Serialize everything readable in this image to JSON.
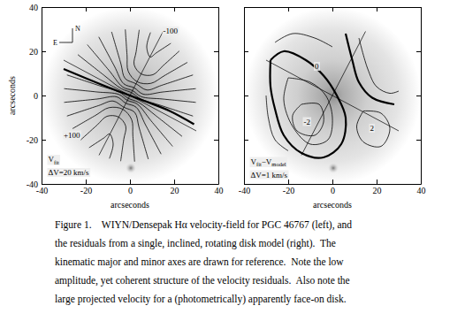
{
  "chart_data": [
    {
      "type": "contour",
      "xlabel": "arcseconds",
      "ylabel": "arcseconds",
      "xlim": [
        -40,
        40
      ],
      "ylim": [
        -40,
        40
      ],
      "xticks": [
        -40,
        -20,
        0,
        20,
        40
      ],
      "yticks": [
        -40,
        -20,
        0,
        20,
        40
      ],
      "tick_labels": true,
      "compass": {
        "north": "N",
        "east": "E"
      },
      "annotations": [
        {
          "text": "-100",
          "x": 15,
          "y": 28
        },
        {
          "text": "+100",
          "x": -30,
          "y": -19
        },
        {
          "segments": [
            {
              "text": "V"
            },
            {
              "text": "fit",
              "sub": true
            }
          ],
          "x": -37,
          "y": -30
        },
        {
          "text": "ΔV=20 km/s",
          "x": -37,
          "y": -36
        }
      ],
      "reference_lines": [
        {
          "x": [
            -14,
            15
          ],
          "values": [
            -27,
            29
          ]
        },
        {
          "x": [
            -30,
            30
          ],
          "values": [
            16,
            -16
          ]
        }
      ],
      "series": [
        {
          "x": [
            -30,
            -18,
            -8,
            0,
            8,
            18,
            29
          ],
          "values": [
            12,
            7,
            3,
            0,
            -3,
            -7,
            -13
          ],
          "line_style": "thick"
        },
        {
          "x": [
            -23.6,
            -11.8,
            -3.9,
            0.7,
            4.8,
            14.3,
            28.5
          ],
          "values": [
            18.5,
            9.2,
            3.1,
            1.3,
            -1.5,
            -4.6,
            -9.3
          ],
          "line_style": "solid"
        },
        {
          "x": [
            -19.3,
            -9.6,
            -3.2,
            1.2,
            5.0,
            14.9,
            29.8
          ],
          "values": [
            23.0,
            11.5,
            3.8,
            2.2,
            -0.5,
            -1.6,
            -3.1
          ],
          "line_style": "solid"
        },
        {
          "x": [
            -14.1,
            -7.0,
            -2.8,
            1.9,
            6.0,
            14.9,
            29.8
          ],
          "values": [
            26.5,
            13.2,
            5.3,
            3.5,
            0.6,
            1.6,
            3.1
          ],
          "line_style": "solid"
        },
        {
          "x": [
            -8.3,
            -4.1,
            -2.2,
            2.8,
            7.6,
            14.3,
            28.5
          ],
          "values": [
            28.8,
            14.4,
            7.7,
            5.3,
            2.5,
            4.6,
            9.3
          ],
          "line_style": "solid"
        },
        {
          "x": [
            -2.1,
            -1.3,
            -0.8,
            3.3,
            9.5,
            15.6,
            26.0
          ],
          "values": [
            29.9,
            18.0,
            11.0,
            6.2,
            5.5,
            9.0,
            15.0
          ],
          "line_style": "solid"
        },
        {
          "x": [
            4.2,
            2.8,
            1.9,
            5.2,
            10.4,
            14.9,
            22.3
          ],
          "values": [
            29.7,
            19.8,
            13.9,
            9.7,
            9.4,
            13.4,
            20.1
          ],
          "line_style": "solid"
        },
        {
          "x": [
            9.3,
            7.6,
            9.2,
            11.8,
            18.5
          ],
          "values": [
            28.5,
            22.0,
            17.4,
            19.2,
            23.6
          ],
          "line_style": "solid"
        },
        {
          "x": [
            23.6,
            11.8,
            3.9,
            -0.7,
            -4.8,
            -14.3,
            -28.5
          ],
          "values": [
            -18.5,
            -9.2,
            -3.1,
            -1.3,
            1.5,
            4.6,
            9.3
          ],
          "line_style": "solid"
        },
        {
          "x": [
            19.3,
            9.6,
            3.2,
            -1.2,
            -5.0,
            -14.9,
            -29.8
          ],
          "values": [
            -23.0,
            -11.5,
            -3.8,
            -2.2,
            0.5,
            1.6,
            3.1
          ],
          "line_style": "solid"
        },
        {
          "x": [
            14.1,
            7.0,
            2.8,
            -1.9,
            -6.0,
            -14.9,
            -29.8
          ],
          "values": [
            -26.5,
            -13.2,
            -5.3,
            -3.5,
            -0.6,
            -1.6,
            -3.1
          ],
          "line_style": "solid"
        },
        {
          "x": [
            8.3,
            4.1,
            2.2,
            -2.8,
            -7.6,
            -14.3,
            -28.5
          ],
          "values": [
            -28.8,
            -14.4,
            -7.7,
            -5.3,
            -2.5,
            -4.6,
            -9.3
          ],
          "line_style": "solid"
        },
        {
          "x": [
            2.1,
            1.3,
            0.8,
            -3.3,
            -9.5,
            -15.6,
            -26.0
          ],
          "values": [
            -29.9,
            -18.0,
            -11.0,
            -6.2,
            -5.5,
            -9.0,
            -15.0
          ],
          "line_style": "solid"
        },
        {
          "x": [
            -4.2,
            -2.8,
            -1.9,
            -5.2,
            -10.4,
            -14.9,
            -22.3
          ],
          "values": [
            -29.7,
            -19.8,
            -13.9,
            -9.7,
            -9.4,
            -13.4,
            -20.1
          ],
          "line_style": "solid"
        },
        {
          "x": [
            -9.3,
            -7.6,
            -9.2,
            -11.8,
            -18.5
          ],
          "values": [
            -28.5,
            -22.0,
            -17.4,
            -19.2,
            -23.6
          ],
          "line_style": "solid"
        }
      ]
    },
    {
      "type": "contour",
      "xlabel": "arcseconds",
      "xlim": [
        -40,
        40
      ],
      "ylim": [
        -40,
        40
      ],
      "xticks": [
        -40,
        -20,
        0,
        20,
        40
      ],
      "yticks": [
        -40,
        -20,
        0,
        20,
        40
      ],
      "tick_labels": "x",
      "annotations": [
        {
          "text": "0",
          "x": -8,
          "y": 12
        },
        {
          "text": "2",
          "x": 17,
          "y": -16
        },
        {
          "text": "-2",
          "x": -13,
          "y": -13
        },
        {
          "segments": [
            {
              "text": "V"
            },
            {
              "text": "fit",
              "sub": true
            },
            {
              "text": "−V"
            },
            {
              "text": "model",
              "sub": true
            }
          ],
          "x": -37,
          "y": -31
        },
        {
          "text": "ΔV=1 km/s",
          "x": -37,
          "y": -37
        }
      ],
      "reference_lines": [
        {
          "x": [
            -14,
            15
          ],
          "values": [
            -27,
            29
          ]
        },
        {
          "x": [
            -30,
            30
          ],
          "values": [
            16,
            -16
          ]
        }
      ],
      "series": [
        {
          "x": [
            -28,
            -22,
            -12,
            -4,
            2,
            6,
            4,
            -4,
            -14,
            -22,
            -26,
            -28,
            -28
          ],
          "values": [
            16,
            20,
            16,
            9,
            0,
            -10,
            -22,
            -28,
            -26,
            -18,
            -6,
            4,
            16
          ],
          "line_style": "thick"
        },
        {
          "x": [
            6,
            9,
            12,
            18,
            28
          ],
          "values": [
            28,
            16,
            6,
            -1,
            -4
          ],
          "line_style": "thick"
        },
        {
          "x": [
            -20,
            -10,
            -3,
            0,
            -2,
            -10,
            -18,
            -22,
            -20
          ],
          "values": [
            8,
            6,
            0,
            -10,
            -20,
            -22,
            -14,
            -2,
            8
          ],
          "line_style": "solid"
        },
        {
          "x": [
            -14,
            -6,
            -4,
            -8,
            -16,
            -18,
            -14
          ],
          "values": [
            -4,
            -4,
            -12,
            -18,
            -16,
            -9,
            -4
          ],
          "line_style": "solid"
        },
        {
          "x": [
            12,
            16,
            20,
            26,
            30
          ],
          "values": [
            26,
            12,
            4,
            1,
            2
          ],
          "line_style": "solid"
        },
        {
          "x": [
            14,
            22,
            26,
            22,
            14,
            11,
            14
          ],
          "values": [
            -7,
            -8,
            -15,
            -23,
            -21,
            -14,
            -7
          ],
          "line_style": "solid"
        },
        {
          "x": [
            -26,
            -18,
            -8,
            0
          ],
          "values": [
            24,
            28,
            26,
            22
          ],
          "line_style": "solid"
        },
        {
          "x": [
            -30,
            -29,
            -26,
            -20
          ],
          "values": [
            0,
            -10,
            -20,
            -25
          ],
          "line_style": "solid"
        }
      ]
    }
  ],
  "caption": {
    "lines": [
      "Figure 1.    WIYN/Densepak Hα velocity-field for PGC 46767 (left), and",
      "the residuals from a single, inclined, rotating disk model (right).  The",
      "kinematic major and minor axes are drawn for reference.  Note the low",
      "amplitude, yet coherent structure of the velocity residuals.  Also note the",
      "large projected velocity for a (photometrically) apparently face-on disk."
    ],
    "emphasis": "low"
  }
}
